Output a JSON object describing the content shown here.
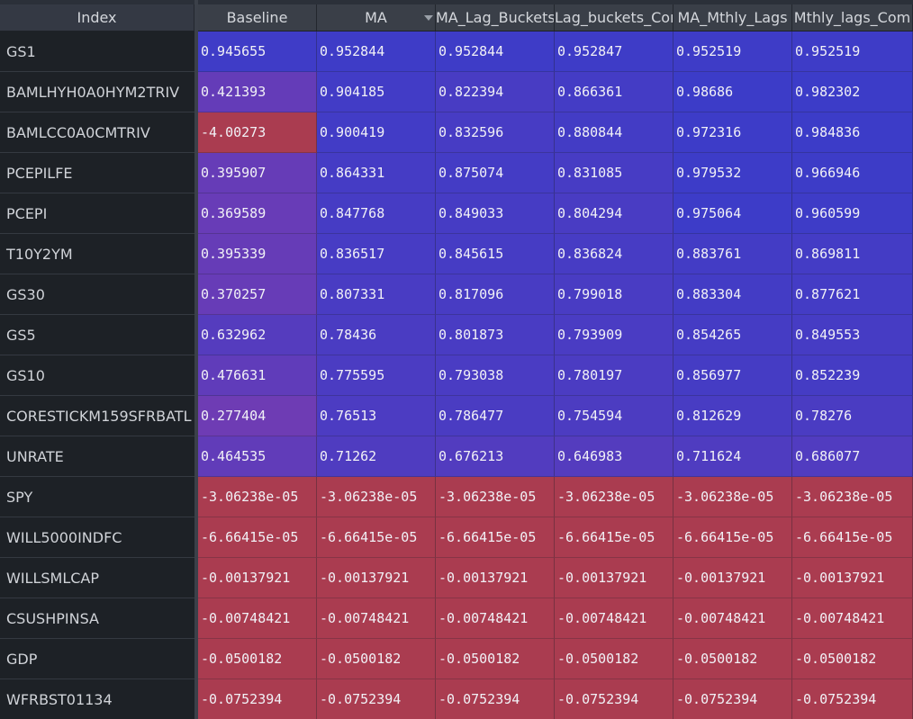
{
  "table": {
    "index_header": "Index",
    "columns": [
      "Baseline",
      "MA",
      "MA_Lag_Buckets",
      "Lag_buckets_Cor",
      "MA_Mthly_Lags",
      "Mthly_lags_Com"
    ],
    "sorted_column": "MA",
    "rows": [
      {
        "index": "GS1",
        "values": [
          "0.945655",
          "0.952844",
          "0.952844",
          "0.952847",
          "0.952519",
          "0.952519"
        ]
      },
      {
        "index": "BAMLHYH0A0HYM2TRIV",
        "values": [
          "0.421393",
          "0.904185",
          "0.822394",
          "0.866361",
          "0.98686",
          "0.982302"
        ]
      },
      {
        "index": "BAMLCC0A0CMTRIV",
        "values": [
          "-4.00273",
          "0.900419",
          "0.832596",
          "0.880844",
          "0.972316",
          "0.984836"
        ]
      },
      {
        "index": "PCEPILFE",
        "values": [
          "0.395907",
          "0.864331",
          "0.875074",
          "0.831085",
          "0.979532",
          "0.966946"
        ]
      },
      {
        "index": "PCEPI",
        "values": [
          "0.369589",
          "0.847768",
          "0.849033",
          "0.804294",
          "0.975064",
          "0.960599"
        ]
      },
      {
        "index": "T10Y2YM",
        "values": [
          "0.395339",
          "0.836517",
          "0.845615",
          "0.836824",
          "0.883761",
          "0.869811"
        ]
      },
      {
        "index": "GS30",
        "values": [
          "0.370257",
          "0.807331",
          "0.817096",
          "0.799018",
          "0.883304",
          "0.877621"
        ]
      },
      {
        "index": "GS5",
        "values": [
          "0.632962",
          "0.78436",
          "0.801873",
          "0.793909",
          "0.854265",
          "0.849553"
        ]
      },
      {
        "index": "GS10",
        "values": [
          "0.476631",
          "0.775595",
          "0.793038",
          "0.780197",
          "0.856977",
          "0.852239"
        ]
      },
      {
        "index": "CORESTICKM159SFRBATL",
        "values": [
          "0.277404",
          "0.76513",
          "0.786477",
          "0.754594",
          "0.812629",
          "0.78276"
        ]
      },
      {
        "index": "UNRATE",
        "values": [
          "0.464535",
          "0.71262",
          "0.676213",
          "0.646983",
          "0.711624",
          "0.686077"
        ]
      },
      {
        "index": "SPY",
        "values": [
          "-3.06238e-05",
          "-3.06238e-05",
          "-3.06238e-05",
          "-3.06238e-05",
          "-3.06238e-05",
          "-3.06238e-05"
        ]
      },
      {
        "index": "WILL5000INDFC",
        "values": [
          "-6.66415e-05",
          "-6.66415e-05",
          "-6.66415e-05",
          "-6.66415e-05",
          "-6.66415e-05",
          "-6.66415e-05"
        ]
      },
      {
        "index": "WILLSMLCAP",
        "values": [
          "-0.00137921",
          "-0.00137921",
          "-0.00137921",
          "-0.00137921",
          "-0.00137921",
          "-0.00137921"
        ]
      },
      {
        "index": "CSUSHPINSA",
        "values": [
          "-0.00748421",
          "-0.00748421",
          "-0.00748421",
          "-0.00748421",
          "-0.00748421",
          "-0.00748421"
        ]
      },
      {
        "index": "GDP",
        "values": [
          "-0.0500182",
          "-0.0500182",
          "-0.0500182",
          "-0.0500182",
          "-0.0500182",
          "-0.0500182"
        ]
      },
      {
        "index": "WFRBST01134",
        "values": [
          "-0.0752394",
          "-0.0752394",
          "-0.0752394",
          "-0.0752394",
          "-0.0752394",
          "-0.0752394"
        ]
      }
    ]
  },
  "chart_data": {
    "type": "heatmap",
    "x": [
      "Baseline",
      "MA",
      "MA_Lag_Buckets",
      "Lag_buckets_Cor",
      "MA_Mthly_Lags",
      "Mthly_lags_Com"
    ],
    "y": [
      "GS1",
      "BAMLHYH0A0HYM2TRIV",
      "BAMLCC0A0CMTRIV",
      "PCEPILFE",
      "PCEPI",
      "T10Y2YM",
      "GS30",
      "GS5",
      "GS10",
      "CORESTICKM159SFRBATL",
      "UNRATE",
      "SPY",
      "WILL5000INDFC",
      "WILLSMLCAP",
      "CSUSHPINSA",
      "GDP",
      "WFRBST01134"
    ],
    "z": [
      [
        0.945655,
        0.952844,
        0.952844,
        0.952847,
        0.952519,
        0.952519
      ],
      [
        0.421393,
        0.904185,
        0.822394,
        0.866361,
        0.98686,
        0.982302
      ],
      [
        -4.00273,
        0.900419,
        0.832596,
        0.880844,
        0.972316,
        0.984836
      ],
      [
        0.395907,
        0.864331,
        0.875074,
        0.831085,
        0.979532,
        0.966946
      ],
      [
        0.369589,
        0.847768,
        0.849033,
        0.804294,
        0.975064,
        0.960599
      ],
      [
        0.395339,
        0.836517,
        0.845615,
        0.836824,
        0.883761,
        0.869811
      ],
      [
        0.370257,
        0.807331,
        0.817096,
        0.799018,
        0.883304,
        0.877621
      ],
      [
        0.632962,
        0.78436,
        0.801873,
        0.793909,
        0.854265,
        0.849553
      ],
      [
        0.476631,
        0.775595,
        0.793038,
        0.780197,
        0.856977,
        0.852239
      ],
      [
        0.277404,
        0.76513,
        0.786477,
        0.754594,
        0.812629,
        0.78276
      ],
      [
        0.464535,
        0.71262,
        0.676213,
        0.646983,
        0.711624,
        0.686077
      ],
      [
        -3.06238e-05,
        -3.06238e-05,
        -3.06238e-05,
        -3.06238e-05,
        -3.06238e-05,
        -3.06238e-05
      ],
      [
        -6.66415e-05,
        -6.66415e-05,
        -6.66415e-05,
        -6.66415e-05,
        -6.66415e-05,
        -6.66415e-05
      ],
      [
        -0.00137921,
        -0.00137921,
        -0.00137921,
        -0.00137921,
        -0.00137921,
        -0.00137921
      ],
      [
        -0.00748421,
        -0.00748421,
        -0.00748421,
        -0.00748421,
        -0.00748421,
        -0.00748421
      ],
      [
        -0.0500182,
        -0.0500182,
        -0.0500182,
        -0.0500182,
        -0.0500182,
        -0.0500182
      ],
      [
        -0.0752394,
        -0.0752394,
        -0.0752394,
        -0.0752394,
        -0.0752394,
        -0.0752394
      ]
    ]
  },
  "colors": {
    "high": "#3c3cc8",
    "low": "#6e3cb4",
    "negative": "#aa3c50"
  }
}
